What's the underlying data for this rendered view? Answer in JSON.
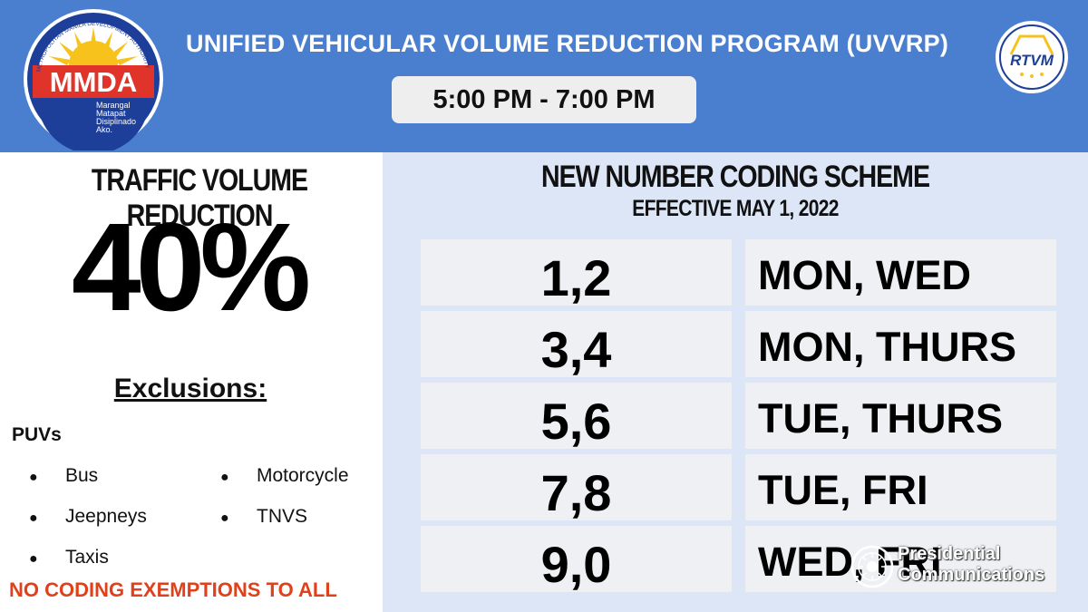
{
  "header": {
    "program_title": "UNIFIED VEHICULAR VOLUME REDUCTION PROGRAM (UVVRP)",
    "time_window": "5:00 PM - 7:00 PM",
    "mmda_logo": {
      "text": "MMDA",
      "ring_text": "METROPOLITAN MANILA DEVELOPMENT AUTHORITY",
      "tagline": [
        "Marangal",
        "Matapat",
        "Disiplinado",
        "Ako."
      ]
    },
    "rtvm_logo": {
      "text": "RTVM"
    }
  },
  "left_panel": {
    "title": "TRAFFIC VOLUME REDUCTION",
    "value": "40%",
    "exclusions_title": "Exclusions:",
    "category": "PUVs",
    "items": [
      "Bus",
      "Jeepneys",
      "Taxis",
      "Motorcycle",
      "TNVS"
    ],
    "bullet": "●",
    "footer_note": "NO CODING EXEMPTIONS TO ALL"
  },
  "right_panel": {
    "title": "NEW NUMBER CODING SCHEME",
    "subtitle": "EFFECTIVE MAY 1, 2022",
    "rows": [
      {
        "plates": "1,2",
        "days": "MON, WED"
      },
      {
        "plates": "3,4",
        "days": "MON, THURS"
      },
      {
        "plates": "5,6",
        "days": "TUE, THURS"
      },
      {
        "plates": "7,8",
        "days": "TUE, FRI"
      },
      {
        "plates": "9,0",
        "days": "WED, FRI"
      }
    ]
  },
  "watermark": {
    "line1": "Presidential",
    "line2": "Communications"
  },
  "colors": {
    "header_blue": "#4a7fd0",
    "right_panel_bg": "#dce6f7",
    "cell_bg": "#eef0f4",
    "alert_red": "#e0401a",
    "mmda_red": "#e0342a",
    "mmda_blue": "#1d3f9a",
    "sun_yellow": "#f7c21b"
  }
}
